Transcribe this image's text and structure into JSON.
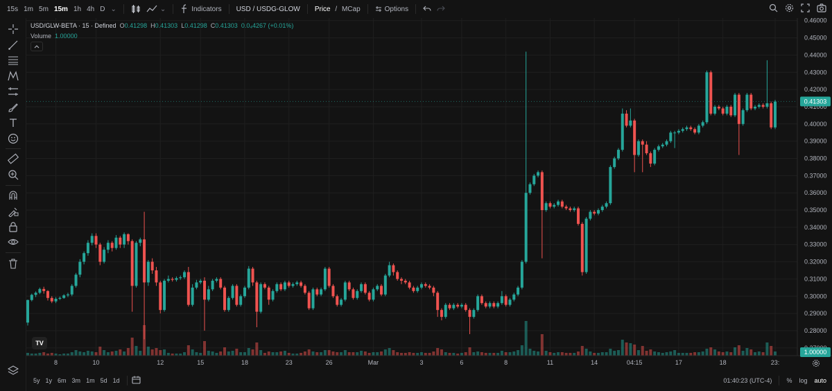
{
  "toolbar": {
    "timeframes": [
      "15s",
      "1m",
      "5m",
      "15m",
      "1h",
      "4h",
      "D"
    ],
    "active_timeframe": "15m",
    "indicators_label": "Indicators",
    "pair_label": "USD / USDG-GLOW",
    "price_label": "Price",
    "mcap_label": "MCap",
    "price_mcap_sep": " / ",
    "options_label": "Options"
  },
  "legend": {
    "symbol": "USD/GLW-BETA · 15 · Defined",
    "o_label": "O",
    "o_value": "0.41298",
    "h_label": "H",
    "h_value": "0.41303",
    "l_label": "L",
    "l_value": "0.41298",
    "c_label": "C",
    "c_value": "0.41303",
    "change": "0.0₄4267 (+0.01%)",
    "volume_label": "Volume",
    "volume_value": "1.00000"
  },
  "bottom": {
    "ranges": [
      "5y",
      "1y",
      "6m",
      "3m",
      "1m",
      "5d",
      "1d"
    ],
    "clock": "01:40:23 (UTC-4)",
    "percent_label": "%",
    "log_label": "log",
    "auto_label": "auto",
    "tv_logo": "TV"
  },
  "colors": {
    "up": "#26a69a",
    "down": "#ef5350",
    "last_price_bg": "#26a69a",
    "grid": "#1f1f1f",
    "background": "#131313"
  },
  "icons": [
    "crosshair-icon",
    "trendline-icon",
    "fib-icon",
    "pattern-icon",
    "measure-lines-icon",
    "brush-icon",
    "text-icon",
    "emoji-icon",
    "ruler-icon",
    "zoom-icon",
    "magnet-icon",
    "lock-draw-icon",
    "lock-icon",
    "eye-icon",
    "trash-icon",
    "layers-icon",
    "undo-icon",
    "redo-icon",
    "search-icon",
    "settings-icon",
    "fullscreen-icon",
    "camera-icon",
    "calendar-icon",
    "gear-icon",
    "candle-type-icon",
    "line-type-icon",
    "fx-icon"
  ],
  "chart_data": {
    "type": "candlestick",
    "symbol": "USD/GLW-BETA",
    "interval": "15",
    "y_ticks": [
      "0.46000",
      "0.45000",
      "0.44000",
      "0.43000",
      "0.42000",
      "0.41000",
      "0.40000",
      "0.39000",
      "0.38000",
      "0.37000",
      "0.36000",
      "0.35000",
      "0.34000",
      "0.33000",
      "0.32000",
      "0.31000",
      "0.30000",
      "0.29000",
      "0.28000",
      "0.27000"
    ],
    "ylim": [
      0.2655,
      0.4615
    ],
    "x_ticks": [
      "8",
      "10",
      "12",
      "15",
      "18",
      "23",
      "26",
      "Mar",
      "3",
      "6",
      "8",
      "11",
      "14",
      "04:15",
      "17",
      "18",
      "23:"
    ],
    "x_tick_index": [
      7,
      17,
      33,
      43,
      54,
      65,
      75,
      86,
      98,
      108,
      119,
      130,
      141,
      151,
      162,
      173,
      186
    ],
    "last_price": "0.41303",
    "volume_last": "1.00000",
    "candles": [
      [
        0.2847,
        0.2978,
        0.283,
        0.298
      ],
      [
        0.2978,
        0.3008,
        0.297,
        0.3015
      ],
      [
        0.3008,
        0.302,
        0.2995,
        0.3028
      ],
      [
        0.302,
        0.3042,
        0.3012,
        0.305
      ],
      [
        0.3042,
        0.303,
        0.3015,
        0.3055
      ],
      [
        0.303,
        0.299,
        0.2975,
        0.3035
      ],
      [
        0.299,
        0.297,
        0.296,
        0.3
      ],
      [
        0.297,
        0.2985,
        0.296,
        0.2995
      ],
      [
        0.2985,
        0.299,
        0.2978,
        0.2998
      ],
      [
        0.299,
        0.3005,
        0.2985,
        0.3012
      ],
      [
        0.3005,
        0.301,
        0.2995,
        0.302
      ],
      [
        0.301,
        0.306,
        0.3,
        0.307
      ],
      [
        0.306,
        0.3125,
        0.305,
        0.3135
      ],
      [
        0.3125,
        0.32,
        0.311,
        0.3215
      ],
      [
        0.32,
        0.325,
        0.3185,
        0.326
      ],
      [
        0.325,
        0.331,
        0.3235,
        0.3325
      ],
      [
        0.331,
        0.335,
        0.3295,
        0.3365
      ],
      [
        0.335,
        0.33,
        0.328,
        0.3365
      ],
      [
        0.33,
        0.32,
        0.318,
        0.331
      ],
      [
        0.32,
        0.327,
        0.319,
        0.3285
      ],
      [
        0.327,
        0.331,
        0.325,
        0.3325
      ],
      [
        0.331,
        0.328,
        0.326,
        0.332
      ],
      [
        0.328,
        0.334,
        0.327,
        0.3355
      ],
      [
        0.334,
        0.33,
        0.328,
        0.335
      ],
      [
        0.33,
        0.336,
        0.328,
        0.337
      ],
      [
        0.336,
        0.332,
        0.33,
        0.3365
      ],
      [
        0.332,
        0.306,
        0.291,
        0.333
      ],
      [
        0.306,
        0.331,
        0.305,
        0.332
      ],
      [
        0.331,
        0.333,
        0.329,
        0.334
      ],
      [
        0.333,
        0.308,
        0.275,
        0.349
      ],
      [
        0.308,
        0.32,
        0.306,
        0.321
      ],
      [
        0.32,
        0.315,
        0.313,
        0.322
      ],
      [
        0.315,
        0.308,
        0.306,
        0.317
      ],
      [
        0.308,
        0.292,
        0.29,
        0.309
      ],
      [
        0.292,
        0.309,
        0.291,
        0.31
      ],
      [
        0.309,
        0.31,
        0.308,
        0.312
      ],
      [
        0.31,
        0.3095,
        0.3085,
        0.311
      ],
      [
        0.3095,
        0.3105,
        0.3085,
        0.3115
      ],
      [
        0.3105,
        0.311,
        0.3095,
        0.312
      ],
      [
        0.311,
        0.314,
        0.31,
        0.315
      ],
      [
        0.314,
        0.295,
        0.294,
        0.317
      ],
      [
        0.295,
        0.305,
        0.294,
        0.307
      ],
      [
        0.305,
        0.308,
        0.304,
        0.3095
      ],
      [
        0.308,
        0.309,
        0.307,
        0.31
      ],
      [
        0.309,
        0.298,
        0.28,
        0.311
      ],
      [
        0.298,
        0.304,
        0.297,
        0.306
      ],
      [
        0.304,
        0.309,
        0.303,
        0.31
      ],
      [
        0.309,
        0.31,
        0.308,
        0.311
      ],
      [
        0.31,
        0.305,
        0.304,
        0.311
      ],
      [
        0.305,
        0.292,
        0.291,
        0.306
      ],
      [
        0.292,
        0.299,
        0.291,
        0.3
      ],
      [
        0.299,
        0.306,
        0.298,
        0.307
      ],
      [
        0.306,
        0.295,
        0.294,
        0.307
      ],
      [
        0.295,
        0.3,
        0.294,
        0.301
      ],
      [
        0.3,
        0.305,
        0.299,
        0.306
      ],
      [
        0.305,
        0.316,
        0.304,
        0.3175
      ],
      [
        0.316,
        0.308,
        0.306,
        0.317
      ],
      [
        0.308,
        0.291,
        0.282,
        0.309
      ],
      [
        0.291,
        0.307,
        0.29,
        0.308
      ],
      [
        0.307,
        0.305,
        0.304,
        0.308
      ],
      [
        0.305,
        0.298,
        0.295,
        0.306
      ],
      [
        0.298,
        0.303,
        0.297,
        0.304
      ],
      [
        0.303,
        0.307,
        0.302,
        0.308
      ],
      [
        0.307,
        0.304,
        0.303,
        0.308
      ],
      [
        0.304,
        0.308,
        0.303,
        0.309
      ],
      [
        0.308,
        0.306,
        0.305,
        0.309
      ],
      [
        0.306,
        0.307,
        0.305,
        0.308
      ],
      [
        0.307,
        0.308,
        0.306,
        0.309
      ],
      [
        0.308,
        0.306,
        0.305,
        0.309
      ],
      [
        0.306,
        0.302,
        0.301,
        0.307
      ],
      [
        0.302,
        0.293,
        0.292,
        0.303
      ],
      [
        0.293,
        0.304,
        0.292,
        0.305
      ],
      [
        0.304,
        0.301,
        0.3,
        0.305
      ],
      [
        0.301,
        0.304,
        0.3,
        0.305
      ],
      [
        0.304,
        0.316,
        0.303,
        0.317
      ],
      [
        0.316,
        0.306,
        0.305,
        0.317
      ],
      [
        0.306,
        0.3,
        0.299,
        0.307
      ],
      [
        0.3,
        0.295,
        0.294,
        0.301
      ],
      [
        0.295,
        0.298,
        0.294,
        0.299
      ],
      [
        0.298,
        0.308,
        0.297,
        0.309
      ],
      [
        0.308,
        0.304,
        0.303,
        0.309
      ],
      [
        0.304,
        0.299,
        0.298,
        0.305
      ],
      [
        0.299,
        0.303,
        0.298,
        0.304
      ],
      [
        0.303,
        0.307,
        0.302,
        0.308
      ],
      [
        0.307,
        0.302,
        0.301,
        0.308
      ],
      [
        0.302,
        0.298,
        0.297,
        0.303
      ],
      [
        0.298,
        0.304,
        0.297,
        0.305
      ],
      [
        0.304,
        0.306,
        0.303,
        0.307
      ],
      [
        0.306,
        0.301,
        0.3,
        0.307
      ],
      [
        0.301,
        0.312,
        0.3,
        0.313
      ],
      [
        0.312,
        0.318,
        0.311,
        0.32
      ],
      [
        0.318,
        0.314,
        0.312,
        0.319
      ],
      [
        0.314,
        0.31,
        0.309,
        0.315
      ],
      [
        0.31,
        0.309,
        0.307,
        0.311
      ],
      [
        0.309,
        0.308,
        0.307,
        0.31
      ],
      [
        0.308,
        0.305,
        0.304,
        0.309
      ],
      [
        0.305,
        0.303,
        0.302,
        0.306
      ],
      [
        0.303,
        0.305,
        0.302,
        0.306
      ],
      [
        0.305,
        0.307,
        0.304,
        0.308
      ],
      [
        0.307,
        0.306,
        0.305,
        0.308
      ],
      [
        0.306,
        0.305,
        0.304,
        0.307
      ],
      [
        0.305,
        0.302,
        0.3,
        0.306
      ],
      [
        0.302,
        0.292,
        0.288,
        0.303
      ],
      [
        0.292,
        0.288,
        0.286,
        0.293
      ],
      [
        0.288,
        0.295,
        0.287,
        0.296
      ],
      [
        0.295,
        0.293,
        0.292,
        0.296
      ],
      [
        0.293,
        0.295,
        0.292,
        0.296
      ],
      [
        0.295,
        0.294,
        0.293,
        0.296
      ],
      [
        0.294,
        0.295,
        0.293,
        0.296
      ],
      [
        0.295,
        0.292,
        0.291,
        0.296
      ],
      [
        0.292,
        0.288,
        0.278,
        0.293
      ],
      [
        0.288,
        0.292,
        0.287,
        0.293
      ],
      [
        0.292,
        0.3,
        0.291,
        0.301
      ],
      [
        0.3,
        0.296,
        0.295,
        0.301
      ],
      [
        0.296,
        0.294,
        0.293,
        0.297
      ],
      [
        0.294,
        0.296,
        0.293,
        0.297
      ],
      [
        0.296,
        0.294,
        0.293,
        0.297
      ],
      [
        0.294,
        0.296,
        0.293,
        0.297
      ],
      [
        0.296,
        0.3,
        0.295,
        0.303
      ],
      [
        0.3,
        0.295,
        0.294,
        0.301
      ],
      [
        0.295,
        0.298,
        0.294,
        0.299
      ],
      [
        0.298,
        0.301,
        0.297,
        0.302
      ],
      [
        0.301,
        0.305,
        0.3,
        0.306
      ],
      [
        0.305,
        0.32,
        0.304,
        0.321
      ],
      [
        0.32,
        0.36,
        0.319,
        0.442
      ],
      [
        0.36,
        0.365,
        0.359,
        0.366
      ],
      [
        0.365,
        0.37,
        0.364,
        0.371
      ],
      [
        0.37,
        0.372,
        0.369,
        0.373
      ],
      [
        0.372,
        0.35,
        0.322,
        0.373
      ],
      [
        0.35,
        0.354,
        0.349,
        0.355
      ],
      [
        0.354,
        0.352,
        0.351,
        0.355
      ],
      [
        0.352,
        0.353,
        0.351,
        0.354
      ],
      [
        0.353,
        0.355,
        0.352,
        0.356
      ],
      [
        0.355,
        0.352,
        0.351,
        0.356
      ],
      [
        0.352,
        0.351,
        0.35,
        0.353
      ],
      [
        0.351,
        0.35,
        0.349,
        0.352
      ],
      [
        0.35,
        0.351,
        0.349,
        0.352
      ],
      [
        0.351,
        0.342,
        0.341,
        0.352
      ],
      [
        0.342,
        0.314,
        0.312,
        0.343
      ],
      [
        0.314,
        0.345,
        0.313,
        0.346
      ],
      [
        0.345,
        0.349,
        0.344,
        0.35
      ],
      [
        0.349,
        0.348,
        0.347,
        0.35
      ],
      [
        0.348,
        0.35,
        0.347,
        0.351
      ],
      [
        0.35,
        0.352,
        0.349,
        0.353
      ],
      [
        0.352,
        0.354,
        0.351,
        0.355
      ],
      [
        0.354,
        0.375,
        0.353,
        0.376
      ],
      [
        0.375,
        0.38,
        0.374,
        0.381
      ],
      [
        0.38,
        0.385,
        0.379,
        0.386
      ],
      [
        0.385,
        0.406,
        0.384,
        0.409
      ],
      [
        0.406,
        0.399,
        0.398,
        0.408
      ],
      [
        0.399,
        0.402,
        0.398,
        0.409
      ],
      [
        0.402,
        0.382,
        0.372,
        0.403
      ],
      [
        0.382,
        0.39,
        0.381,
        0.391
      ],
      [
        0.39,
        0.388,
        0.372,
        0.391
      ],
      [
        0.388,
        0.383,
        0.382,
        0.39
      ],
      [
        0.383,
        0.377,
        0.375,
        0.384
      ],
      [
        0.377,
        0.385,
        0.376,
        0.386
      ],
      [
        0.385,
        0.387,
        0.384,
        0.388
      ],
      [
        0.387,
        0.388,
        0.386,
        0.389
      ],
      [
        0.388,
        0.39,
        0.387,
        0.391
      ],
      [
        0.39,
        0.395,
        0.389,
        0.396
      ],
      [
        0.395,
        0.395,
        0.386,
        0.396
      ],
      [
        0.395,
        0.396,
        0.394,
        0.397
      ],
      [
        0.396,
        0.397,
        0.395,
        0.398
      ],
      [
        0.397,
        0.398,
        0.396,
        0.399
      ],
      [
        0.398,
        0.397,
        0.396,
        0.399
      ],
      [
        0.397,
        0.395,
        0.394,
        0.398
      ],
      [
        0.395,
        0.399,
        0.394,
        0.4
      ],
      [
        0.399,
        0.401,
        0.398,
        0.402
      ],
      [
        0.401,
        0.43,
        0.4,
        0.431
      ],
      [
        0.43,
        0.406,
        0.405,
        0.431
      ],
      [
        0.406,
        0.41,
        0.405,
        0.411
      ],
      [
        0.41,
        0.409,
        0.408,
        0.411
      ],
      [
        0.409,
        0.406,
        0.405,
        0.41
      ],
      [
        0.406,
        0.41,
        0.405,
        0.411
      ],
      [
        0.41,
        0.405,
        0.404,
        0.411
      ],
      [
        0.405,
        0.417,
        0.404,
        0.418
      ],
      [
        0.417,
        0.4,
        0.382,
        0.418
      ],
      [
        0.4,
        0.408,
        0.399,
        0.409
      ],
      [
        0.408,
        0.417,
        0.407,
        0.418
      ],
      [
        0.417,
        0.409,
        0.408,
        0.418
      ],
      [
        0.409,
        0.41,
        0.408,
        0.411
      ],
      [
        0.41,
        0.411,
        0.409,
        0.412
      ],
      [
        0.411,
        0.41,
        0.409,
        0.412
      ],
      [
        0.41,
        0.412,
        0.409,
        0.437
      ],
      [
        0.412,
        0.398,
        0.397,
        0.413
      ],
      [
        0.398,
        0.413,
        0.397,
        0.414
      ]
    ],
    "volumes": [
      0.4,
      0.3,
      0.3,
      0.4,
      0.5,
      0.3,
      0.4,
      0.3,
      0.2,
      0.3,
      0.3,
      0.5,
      0.8,
      0.6,
      0.5,
      0.7,
      0.6,
      0.5,
      1.3,
      0.8,
      0.5,
      0.6,
      0.7,
      0.9,
      0.6,
      1.1,
      2.6,
      1.4,
      0.7,
      4.4,
      1.3,
      0.9,
      1.1,
      0.8,
      0.9,
      0.4,
      0.3,
      0.3,
      0.3,
      0.5,
      1.5,
      0.9,
      0.5,
      0.4,
      2.1,
      0.7,
      0.6,
      0.4,
      0.6,
      1.2,
      0.6,
      0.7,
      1.0,
      0.5,
      0.5,
      1.1,
      0.9,
      1.9,
      0.8,
      0.4,
      0.6,
      0.5,
      0.5,
      0.6,
      0.7,
      0.4,
      0.3,
      0.3,
      0.4,
      0.6,
      0.9,
      0.6,
      0.5,
      0.5,
      0.8,
      0.8,
      0.6,
      0.5,
      0.5,
      0.8,
      0.5,
      0.5,
      0.5,
      0.7,
      0.6,
      0.4,
      0.5,
      0.5,
      0.6,
      0.9,
      1.1,
      0.8,
      0.5,
      0.4,
      0.4,
      0.5,
      0.4,
      0.4,
      0.5,
      0.4,
      0.4,
      0.6,
      1.1,
      0.9,
      0.5,
      0.4,
      0.4,
      0.3,
      0.4,
      0.5,
      1.2,
      0.5,
      0.6,
      0.5,
      0.4,
      0.4,
      0.4,
      0.4,
      0.7,
      0.5,
      0.5,
      0.6,
      0.8,
      1.5,
      5.0,
      1.0,
      0.7,
      0.6,
      3.1,
      0.7,
      0.5,
      0.4,
      0.5,
      0.5,
      0.4,
      0.4,
      0.4,
      0.6,
      1.4,
      1.0,
      0.6,
      0.4,
      0.4,
      0.5,
      0.5,
      1.0,
      0.7,
      0.8,
      2.3,
      1.9,
      1.8,
      1.6,
      0.8,
      1.4,
      0.7,
      0.9,
      0.6,
      0.5,
      0.4,
      0.5,
      0.6,
      0.8,
      0.4,
      0.4,
      0.4,
      0.4,
      0.5,
      0.5,
      0.6,
      1.0,
      1.2,
      0.9,
      0.6,
      0.5,
      0.6,
      0.5,
      1.2,
      1.5,
      0.7,
      1.1,
      0.9,
      0.5,
      0.6,
      0.5,
      1.9,
      1.4,
      0.6
    ]
  }
}
